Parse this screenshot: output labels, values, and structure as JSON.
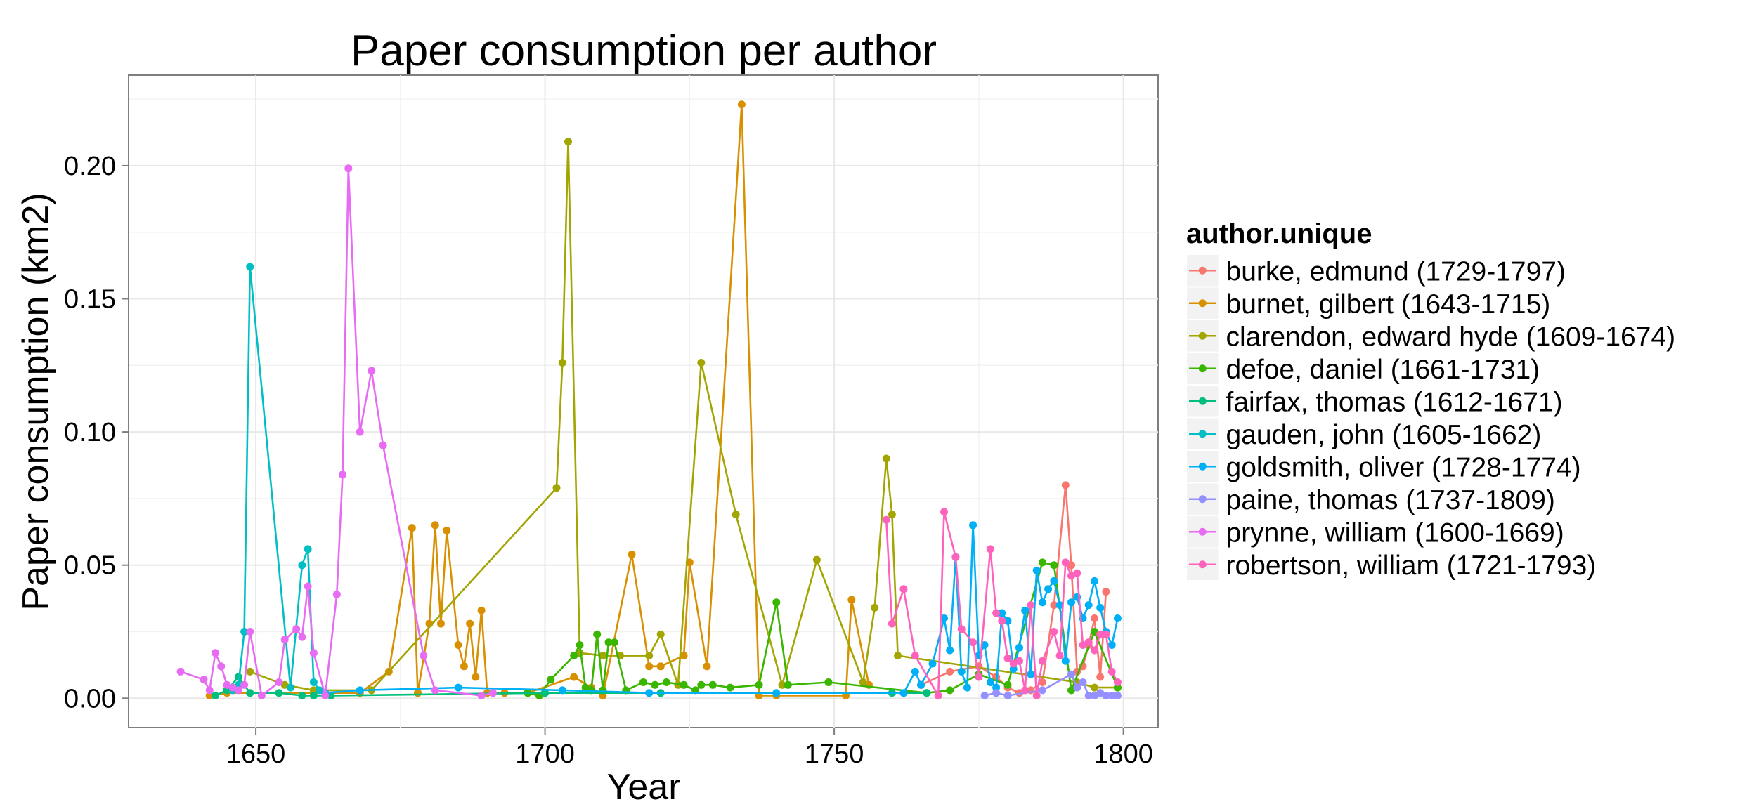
{
  "chart_data": {
    "type": "line",
    "title": "Paper consumption per author",
    "xlabel": "Year",
    "ylabel": "Paper consumption (km2)",
    "xlim": [
      1628,
      1806
    ],
    "ylim": [
      -0.011,
      0.234
    ],
    "xticks": [
      1650,
      1700,
      1750,
      1800
    ],
    "yticks": [
      0.0,
      0.05,
      0.1,
      0.15,
      0.2
    ],
    "ytick_labels": [
      "0.00",
      "0.05",
      "0.10",
      "0.15",
      "0.20"
    ],
    "grid": true,
    "legend_title": "author.unique",
    "legend_position": "right",
    "series": [
      {
        "name": "burke, edmund (1729-1797)",
        "color": "#F8766D",
        "points": [
          [
            1765,
            0.005
          ],
          [
            1770,
            0.01
          ],
          [
            1775,
            0.012
          ],
          [
            1778,
            0.008
          ],
          [
            1780,
            0.004
          ],
          [
            1782,
            0.002
          ],
          [
            1784,
            0.003
          ],
          [
            1786,
            0.006
          ],
          [
            1788,
            0.035
          ],
          [
            1790,
            0.08
          ],
          [
            1791,
            0.05
          ],
          [
            1792,
            0.01
          ],
          [
            1793,
            0.012
          ],
          [
            1794,
            0.02
          ],
          [
            1795,
            0.03
          ],
          [
            1796,
            0.008
          ],
          [
            1797,
            0.04
          ]
        ]
      },
      {
        "name": "burnet, gilbert (1643-1715)",
        "color": "#D89000",
        "points": [
          [
            1642,
            0.001
          ],
          [
            1645,
            0.002
          ],
          [
            1660,
            0.002
          ],
          [
            1668,
            0.002
          ],
          [
            1673,
            0.01
          ],
          [
            1677,
            0.064
          ],
          [
            1678,
            0.002
          ],
          [
            1680,
            0.028
          ],
          [
            1681,
            0.065
          ],
          [
            1682,
            0.028
          ],
          [
            1683,
            0.063
          ],
          [
            1685,
            0.02
          ],
          [
            1686,
            0.012
          ],
          [
            1687,
            0.028
          ],
          [
            1688,
            0.008
          ],
          [
            1689,
            0.033
          ],
          [
            1690,
            0.002
          ],
          [
            1693,
            0.002
          ],
          [
            1697,
            0.002
          ],
          [
            1705,
            0.008
          ],
          [
            1708,
            0.004
          ],
          [
            1710,
            0.001
          ],
          [
            1715,
            0.054
          ],
          [
            1718,
            0.012
          ],
          [
            1720,
            0.012
          ],
          [
            1724,
            0.016
          ],
          [
            1725,
            0.051
          ],
          [
            1728,
            0.012
          ],
          [
            1734,
            0.223
          ],
          [
            1737,
            0.001
          ],
          [
            1740,
            0.001
          ],
          [
            1752,
            0.001
          ],
          [
            1753,
            0.037
          ],
          [
            1756,
            0.005
          ]
        ]
      },
      {
        "name": "clarendon, edward hyde (1609-1674)",
        "color": "#A3A500",
        "points": [
          [
            1649,
            0.01
          ],
          [
            1655,
            0.005
          ],
          [
            1660,
            0.003
          ],
          [
            1670,
            0.003
          ],
          [
            1702,
            0.079
          ],
          [
            1703,
            0.126
          ],
          [
            1704,
            0.209
          ],
          [
            1706,
            0.017
          ],
          [
            1710,
            0.016
          ],
          [
            1713,
            0.016
          ],
          [
            1718,
            0.016
          ],
          [
            1720,
            0.024
          ],
          [
            1723,
            0.005
          ],
          [
            1727,
            0.126
          ],
          [
            1733,
            0.069
          ],
          [
            1741,
            0.005
          ],
          [
            1747,
            0.052
          ],
          [
            1755,
            0.006
          ],
          [
            1757,
            0.034
          ],
          [
            1759,
            0.09
          ],
          [
            1760,
            0.069
          ],
          [
            1761,
            0.016
          ],
          [
            1792,
            0.006
          ],
          [
            1795,
            0.004
          ],
          [
            1799,
            0.004
          ]
        ]
      },
      {
        "name": "defoe, daniel (1661-1731)",
        "color": "#39B600",
        "points": [
          [
            1697,
            0.002
          ],
          [
            1699,
            0.001
          ],
          [
            1701,
            0.007
          ],
          [
            1705,
            0.016
          ],
          [
            1706,
            0.02
          ],
          [
            1707,
            0.004
          ],
          [
            1708,
            0.003
          ],
          [
            1709,
            0.024
          ],
          [
            1710,
            0.003
          ],
          [
            1711,
            0.021
          ],
          [
            1712,
            0.021
          ],
          [
            1714,
            0.003
          ],
          [
            1717,
            0.006
          ],
          [
            1719,
            0.005
          ],
          [
            1721,
            0.006
          ],
          [
            1724,
            0.005
          ],
          [
            1726,
            0.003
          ],
          [
            1727,
            0.005
          ],
          [
            1729,
            0.005
          ],
          [
            1732,
            0.004
          ],
          [
            1737,
            0.005
          ],
          [
            1740,
            0.036
          ],
          [
            1742,
            0.005
          ],
          [
            1749,
            0.006
          ],
          [
            1766,
            0.002
          ],
          [
            1770,
            0.003
          ],
          [
            1775,
            0.009
          ],
          [
            1780,
            0.005
          ],
          [
            1786,
            0.051
          ],
          [
            1788,
            0.05
          ],
          [
            1791,
            0.003
          ],
          [
            1795,
            0.025
          ],
          [
            1799,
            0.004
          ]
        ]
      },
      {
        "name": "fairfax, thomas (1612-1671)",
        "color": "#00BF7D",
        "points": [
          [
            1643,
            0.001
          ],
          [
            1645,
            0.003
          ],
          [
            1647,
            0.008
          ],
          [
            1649,
            0.002
          ],
          [
            1654,
            0.002
          ],
          [
            1658,
            0.001
          ],
          [
            1660,
            0.001
          ],
          [
            1663,
            0.001
          ],
          [
            1700,
            0.002
          ],
          [
            1720,
            0.002
          ],
          [
            1760,
            0.002
          ],
          [
            1766,
            0.002
          ]
        ]
      },
      {
        "name": "gauden, john (1605-1662)",
        "color": "#00BFC4",
        "points": [
          [
            1646,
            0.003
          ],
          [
            1647,
            0.005
          ],
          [
            1648,
            0.025
          ],
          [
            1649,
            0.162
          ],
          [
            1656,
            0.004
          ],
          [
            1658,
            0.05
          ],
          [
            1659,
            0.056
          ],
          [
            1660,
            0.006
          ],
          [
            1661,
            0.003
          ],
          [
            1662,
            0.002
          ]
        ]
      },
      {
        "name": "goldsmith, oliver (1728-1774)",
        "color": "#00B0F6",
        "points": [
          [
            1662,
            0.002
          ],
          [
            1668,
            0.003
          ],
          [
            1685,
            0.004
          ],
          [
            1703,
            0.003
          ],
          [
            1718,
            0.002
          ],
          [
            1740,
            0.002
          ],
          [
            1762,
            0.002
          ],
          [
            1764,
            0.01
          ],
          [
            1765,
            0.005
          ],
          [
            1767,
            0.013
          ],
          [
            1769,
            0.03
          ],
          [
            1770,
            0.018
          ],
          [
            1771,
            0.053
          ],
          [
            1772,
            0.01
          ],
          [
            1773,
            0.004
          ],
          [
            1774,
            0.065
          ],
          [
            1775,
            0.016
          ],
          [
            1776,
            0.02
          ],
          [
            1777,
            0.006
          ],
          [
            1778,
            0.004
          ],
          [
            1779,
            0.032
          ],
          [
            1780,
            0.029
          ],
          [
            1781,
            0.011
          ],
          [
            1782,
            0.019
          ],
          [
            1783,
            0.033
          ],
          [
            1784,
            0.009
          ],
          [
            1785,
            0.048
          ],
          [
            1786,
            0.036
          ],
          [
            1787,
            0.041
          ],
          [
            1788,
            0.044
          ],
          [
            1789,
            0.035
          ],
          [
            1790,
            0.014
          ],
          [
            1791,
            0.036
          ],
          [
            1792,
            0.038
          ],
          [
            1793,
            0.03
          ],
          [
            1794,
            0.035
          ],
          [
            1795,
            0.044
          ],
          [
            1796,
            0.034
          ],
          [
            1797,
            0.025
          ],
          [
            1798,
            0.02
          ],
          [
            1799,
            0.03
          ]
        ]
      },
      {
        "name": "paine, thomas (1737-1809)",
        "color": "#9590FF",
        "points": [
          [
            1776,
            0.001
          ],
          [
            1778,
            0.002
          ],
          [
            1780,
            0.001
          ],
          [
            1786,
            0.003
          ],
          [
            1791,
            0.009
          ],
          [
            1792,
            0.004
          ],
          [
            1793,
            0.006
          ],
          [
            1794,
            0.001
          ],
          [
            1795,
            0.001
          ],
          [
            1796,
            0.002
          ],
          [
            1797,
            0.001
          ],
          [
            1798,
            0.001
          ],
          [
            1799,
            0.001
          ]
        ]
      },
      {
        "name": "prynne, william (1600-1669)",
        "color": "#E76BF3",
        "points": [
          [
            1637,
            0.01
          ],
          [
            1641,
            0.007
          ],
          [
            1642,
            0.003
          ],
          [
            1643,
            0.017
          ],
          [
            1644,
            0.012
          ],
          [
            1645,
            0.005
          ],
          [
            1646,
            0.004
          ],
          [
            1647,
            0.003
          ],
          [
            1648,
            0.005
          ],
          [
            1649,
            0.025
          ],
          [
            1651,
            0.001
          ],
          [
            1654,
            0.006
          ],
          [
            1655,
            0.022
          ],
          [
            1657,
            0.026
          ],
          [
            1658,
            0.023
          ],
          [
            1659,
            0.042
          ],
          [
            1660,
            0.017
          ],
          [
            1662,
            0.001
          ],
          [
            1664,
            0.039
          ],
          [
            1665,
            0.084
          ],
          [
            1666,
            0.199
          ],
          [
            1668,
            0.1
          ],
          [
            1670,
            0.123
          ],
          [
            1672,
            0.095
          ],
          [
            1679,
            0.016
          ],
          [
            1681,
            0.003
          ],
          [
            1689,
            0.001
          ],
          [
            1691,
            0.002
          ]
        ]
      },
      {
        "name": "robertson, william (1721-1793)",
        "color": "#FF62BC",
        "points": [
          [
            1759,
            0.067
          ],
          [
            1760,
            0.028
          ],
          [
            1762,
            0.041
          ],
          [
            1764,
            0.016
          ],
          [
            1768,
            0.001
          ],
          [
            1769,
            0.07
          ],
          [
            1771,
            0.053
          ],
          [
            1772,
            0.026
          ],
          [
            1774,
            0.021
          ],
          [
            1775,
            0.008
          ],
          [
            1777,
            0.056
          ],
          [
            1778,
            0.032
          ],
          [
            1779,
            0.029
          ],
          [
            1780,
            0.015
          ],
          [
            1781,
            0.013
          ],
          [
            1782,
            0.014
          ],
          [
            1783,
            0.003
          ],
          [
            1784,
            0.035
          ],
          [
            1785,
            0.001
          ],
          [
            1786,
            0.014
          ],
          [
            1788,
            0.025
          ],
          [
            1789,
            0.016
          ],
          [
            1790,
            0.051
          ],
          [
            1791,
            0.046
          ],
          [
            1792,
            0.047
          ],
          [
            1793,
            0.02
          ],
          [
            1794,
            0.021
          ],
          [
            1795,
            0.018
          ],
          [
            1796,
            0.024
          ],
          [
            1797,
            0.024
          ],
          [
            1798,
            0.01
          ],
          [
            1799,
            0.006
          ]
        ]
      }
    ]
  }
}
